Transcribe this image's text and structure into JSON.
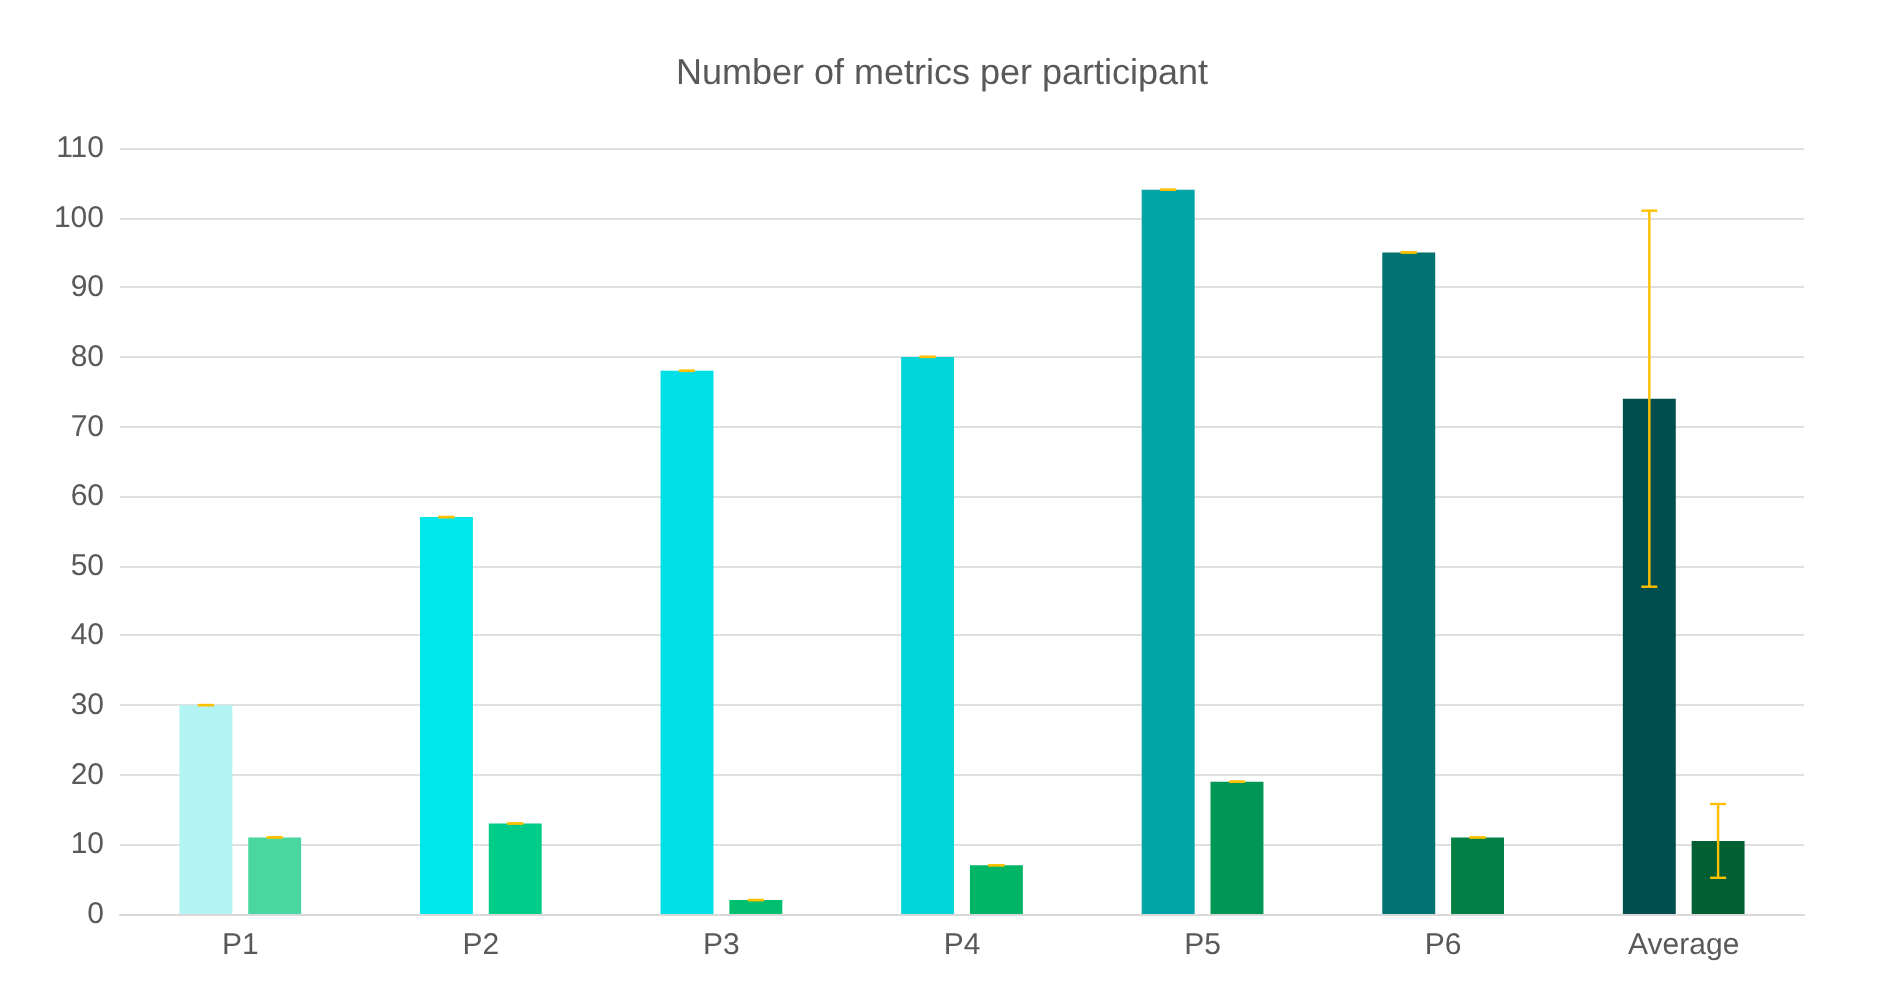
{
  "chart_data": {
    "type": "bar",
    "title": "Number of metrics per participant",
    "categories": [
      "P1",
      "P2",
      "P3",
      "P4",
      "P5",
      "P6",
      "Average"
    ],
    "series": [
      {
        "colors": [
          "#b3f3f3",
          "#00e8ec",
          "#00e0e6",
          "#00d5d8",
          "#00a3a6",
          "#007370",
          "#004e4e"
        ],
        "values": [
          30,
          57,
          78,
          80,
          104,
          95,
          74
        ],
        "errors": [
          0,
          0,
          0,
          0,
          0,
          0,
          27
        ]
      },
      {
        "colors": [
          "#4ad6a0",
          "#00cc8a",
          "#00c070",
          "#00b566",
          "#009655",
          "#008045",
          "#006034"
        ],
        "values": [
          11,
          13,
          2,
          7,
          19,
          11,
          10.5
        ],
        "errors": [
          0,
          0,
          0,
          0,
          0,
          0,
          5.3
        ]
      }
    ],
    "ylim": [
      0,
      110
    ],
    "yticks": [
      0,
      10,
      20,
      30,
      40,
      50,
      60,
      70,
      80,
      90,
      100,
      110
    ],
    "grid": "y"
  }
}
